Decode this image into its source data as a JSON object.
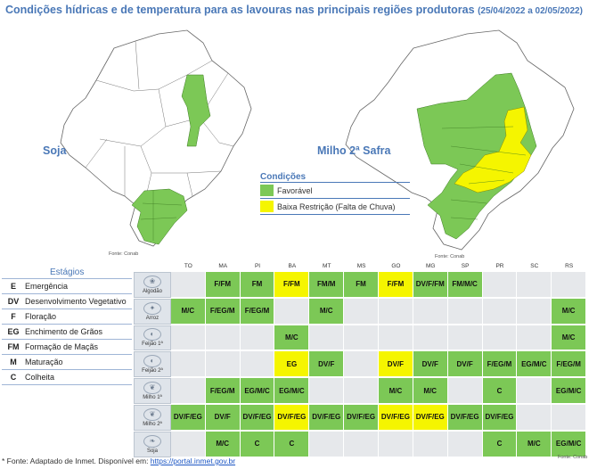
{
  "title": "Condições hídricas e de temperatura para as lavouras nas principais regiões produtoras",
  "dates": "(25/04/2022 a 02/05/2022)",
  "maps": [
    {
      "label": "Soja",
      "credit": "Fonte: Conab"
    },
    {
      "label": "Milho 2ª Safra",
      "credit": "Fonte: Conab"
    }
  ],
  "legend": {
    "title": "Condições",
    "items": [
      {
        "label": "Favorável",
        "color": "#7cc856"
      },
      {
        "label": "Baixa Restrição (Falta de Chuva)",
        "color": "#f5f500"
      }
    ]
  },
  "stages": {
    "title": "Estágios",
    "items": [
      {
        "code": "E",
        "label": "Emergência"
      },
      {
        "code": "DV",
        "label": "Desenvolvimento Vegetativo"
      },
      {
        "code": "F",
        "label": "Floração"
      },
      {
        "code": "EG",
        "label": "Enchimento de Grãos"
      },
      {
        "code": "FM",
        "label": "Formação de Maçãs"
      },
      {
        "code": "M",
        "label": "Maturação"
      },
      {
        "code": "C",
        "label": "Colheita"
      }
    ]
  },
  "table": {
    "states": [
      "TO",
      "MA",
      "PI",
      "BA",
      "MT",
      "MS",
      "GO",
      "MG",
      "SP",
      "PR",
      "SC",
      "RS"
    ],
    "rows": [
      {
        "crop": "Algodão",
        "icon": "cotton-icon",
        "cells": [
          [
            "",
            ""
          ],
          [
            "F/FM",
            "g"
          ],
          [
            "FM",
            "g"
          ],
          [
            "F/FM",
            "y"
          ],
          [
            "FM/M",
            "g"
          ],
          [
            "FM",
            "g"
          ],
          [
            "F/FM",
            "y"
          ],
          [
            "DV/F/FM",
            "g"
          ],
          [
            "FM/M/C",
            "g"
          ],
          [
            "",
            ""
          ],
          [
            "",
            ""
          ],
          [
            "",
            ""
          ]
        ]
      },
      {
        "crop": "Arroz",
        "icon": "rice-icon",
        "cells": [
          [
            "M/C",
            "g"
          ],
          [
            "F/EG/M",
            "g"
          ],
          [
            "F/EG/M",
            "g"
          ],
          [
            "",
            ""
          ],
          [
            "M/C",
            "g"
          ],
          [
            "",
            ""
          ],
          [
            "",
            ""
          ],
          [
            "",
            ""
          ],
          [
            "",
            ""
          ],
          [
            "",
            ""
          ],
          [
            "",
            ""
          ],
          [
            "M/C",
            "g"
          ]
        ]
      },
      {
        "crop": "Feijão 1ª",
        "icon": "bean-icon",
        "cells": [
          [
            "",
            ""
          ],
          [
            "",
            ""
          ],
          [
            "",
            ""
          ],
          [
            "M/C",
            "g"
          ],
          [
            "",
            ""
          ],
          [
            "",
            ""
          ],
          [
            "",
            ""
          ],
          [
            "",
            ""
          ],
          [
            "",
            ""
          ],
          [
            "",
            ""
          ],
          [
            "",
            ""
          ],
          [
            "M/C",
            "g"
          ]
        ]
      },
      {
        "crop": "Feijão 2ª",
        "icon": "bean-icon",
        "cells": [
          [
            "",
            ""
          ],
          [
            "",
            ""
          ],
          [
            "",
            ""
          ],
          [
            "EG",
            "y"
          ],
          [
            "DV/F",
            "g"
          ],
          [
            "",
            ""
          ],
          [
            "DV/F",
            "y"
          ],
          [
            "DV/F",
            "g"
          ],
          [
            "DV/F",
            "g"
          ],
          [
            "F/EG/M",
            "g"
          ],
          [
            "EG/M/C",
            "g"
          ],
          [
            "F/EG/M",
            "g"
          ]
        ]
      },
      {
        "crop": "Milho 1ª",
        "icon": "corn-icon",
        "cells": [
          [
            "",
            ""
          ],
          [
            "F/EG/M",
            "g"
          ],
          [
            "EG/M/C",
            "g"
          ],
          [
            "EG/M/C",
            "g"
          ],
          [
            "",
            ""
          ],
          [
            "",
            ""
          ],
          [
            "M/C",
            "g"
          ],
          [
            "M/C",
            "g"
          ],
          [
            "",
            ""
          ],
          [
            "C",
            "g"
          ],
          [
            "",
            ""
          ],
          [
            "EG/M/C",
            "g"
          ]
        ]
      },
      {
        "crop": "Milho 2ª",
        "icon": "corn-icon",
        "cells": [
          [
            "DV/F/EG",
            "g"
          ],
          [
            "DV/F",
            "g"
          ],
          [
            "DV/F/EG",
            "g"
          ],
          [
            "DV/F/EG",
            "y"
          ],
          [
            "DV/F/EG",
            "g"
          ],
          [
            "DV/F/EG",
            "g"
          ],
          [
            "DV/F/EG",
            "y"
          ],
          [
            "DV/F/EG",
            "y"
          ],
          [
            "DV/F/EG",
            "g"
          ],
          [
            "DV/F/EG",
            "g"
          ],
          [
            "",
            ""
          ],
          [
            "",
            ""
          ]
        ]
      },
      {
        "crop": "Soja",
        "icon": "soy-icon",
        "cells": [
          [
            "",
            ""
          ],
          [
            "M/C",
            "g"
          ],
          [
            "C",
            "g"
          ],
          [
            "C",
            "g"
          ],
          [
            "",
            ""
          ],
          [
            "",
            ""
          ],
          [
            "",
            ""
          ],
          [
            "",
            ""
          ],
          [
            "",
            ""
          ],
          [
            "C",
            "g"
          ],
          [
            "M/C",
            "g"
          ],
          [
            "EG/M/C",
            "g"
          ]
        ]
      }
    ],
    "credit": "Fonte: Conab"
  },
  "footnote": {
    "text": "* Fonte: Adaptado de Inmet. Disponível em: ",
    "link": "https://portal.inmet.gov.br"
  }
}
